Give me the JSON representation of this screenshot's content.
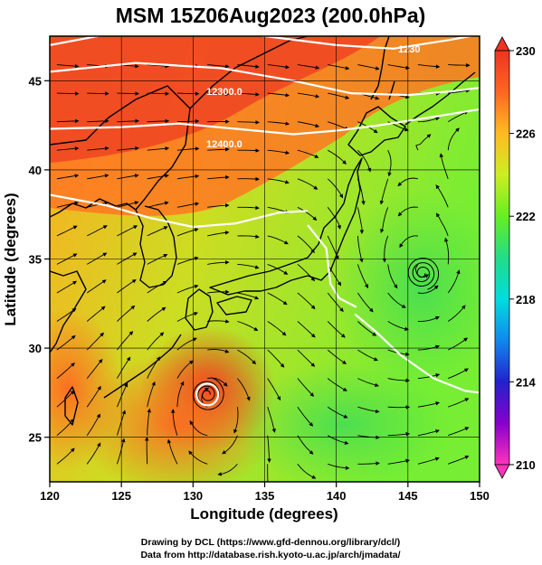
{
  "title": "MSM 15Z06Aug2023 (200.0hPa)",
  "xlabel": "Longitude (degrees)",
  "ylabel": "Latitude  (degrees)",
  "credits": {
    "line1": "Drawing by DCL (https://www.gfd-dennou.org/library/dcl/)",
    "line2": "Data from http://database.rish.kyoto-u.ac.jp/arch/jmadata/"
  },
  "chart_data": {
    "type": "heatmap",
    "description_overlay": "streamlines",
    "x_ticks": [
      "120",
      "125",
      "130",
      "135",
      "140",
      "145",
      "150"
    ],
    "y_ticks": [
      "25",
      "30",
      "35",
      "40",
      "45"
    ],
    "xlim": [
      120,
      150
    ],
    "ylim": [
      22.5,
      47.5
    ],
    "colorbar": {
      "min": 210,
      "max": 230,
      "ticks": [
        "230",
        "226",
        "222",
        "218",
        "214",
        "210"
      ],
      "colors": [
        "#ff33bb",
        "#8800cc",
        "#2222cc",
        "#1188ee",
        "#00dddd",
        "#22dd88",
        "#66ee22",
        "#ccee22",
        "#ffbb22",
        "#ff6622",
        "#ee3322"
      ]
    },
    "contour_labels": [
      "1230",
      "12300.0",
      "12400.0"
    ],
    "contours": [
      {
        "points": [
          [
            120,
            47
          ],
          [
            124,
            47.6
          ],
          [
            128,
            47.7
          ],
          [
            134,
            47.6
          ],
          [
            140,
            47
          ],
          [
            144,
            46.8
          ],
          [
            148,
            47.3
          ],
          [
            150,
            47.6
          ]
        ]
      },
      {
        "points": [
          [
            120,
            45.5
          ],
          [
            126,
            46
          ],
          [
            132,
            45.7
          ],
          [
            137,
            45
          ],
          [
            141,
            44.3
          ],
          [
            145,
            44.2
          ],
          [
            148,
            44.4
          ],
          [
            150,
            44.6
          ]
        ]
      },
      {
        "points": [
          [
            120,
            42.3
          ],
          [
            125,
            42.4
          ],
          [
            129,
            42.6
          ],
          [
            133,
            42.3
          ],
          [
            137,
            42
          ],
          [
            140,
            42.2
          ],
          [
            143,
            42.5
          ],
          [
            147,
            43
          ],
          [
            150,
            43.4
          ]
        ]
      },
      {
        "points": [
          [
            120,
            38.6
          ],
          [
            124,
            38
          ],
          [
            127,
            37.3
          ],
          [
            130,
            36.8
          ],
          [
            133,
            37
          ],
          [
            136,
            37.6
          ],
          [
            138,
            37.7
          ]
        ]
      },
      {
        "points": [
          [
            138,
            36.9
          ],
          [
            139.3,
            35.6
          ],
          [
            139.6,
            33.6
          ],
          [
            140.2,
            32.8
          ],
          [
            141.4,
            32.3
          ]
        ]
      },
      {
        "points": [
          [
            141.3,
            31.9
          ],
          [
            142.8,
            30.9
          ],
          [
            144.5,
            29.6
          ],
          [
            146.8,
            28.3
          ],
          [
            149,
            27.6
          ],
          [
            150,
            27.5
          ]
        ]
      }
    ],
    "vortices": [
      {
        "type": "cyclonic",
        "center": [
          131,
          27.4
        ]
      },
      {
        "type": "anticyclonic",
        "center": [
          146,
          34.2
        ]
      }
    ]
  }
}
